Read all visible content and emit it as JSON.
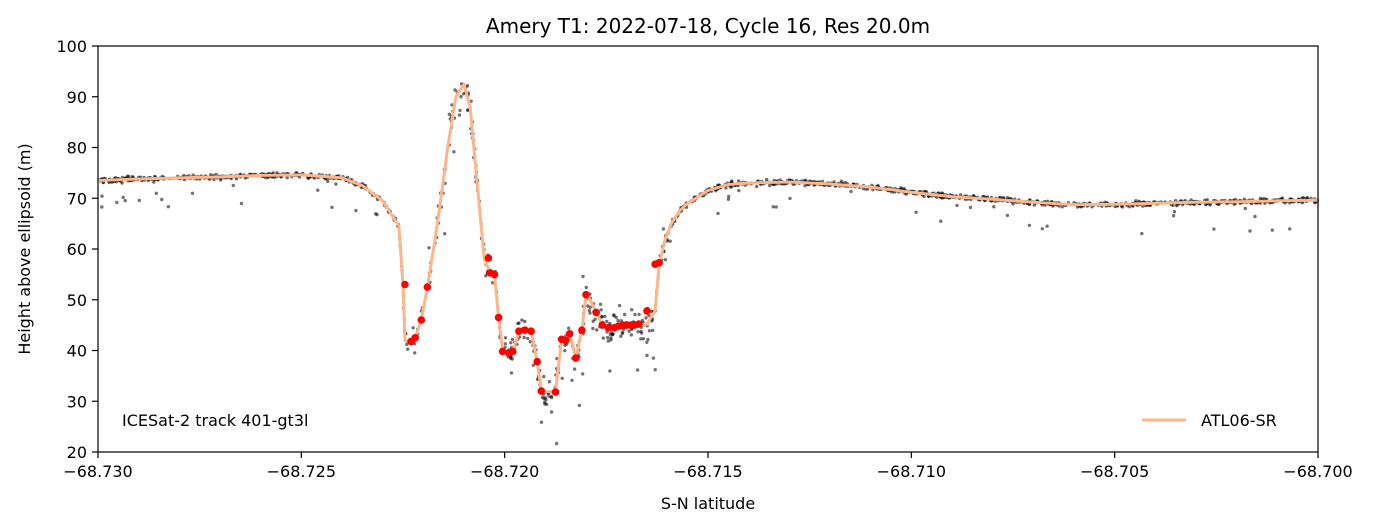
{
  "chart_data": {
    "type": "scatter",
    "title": "Amery T1: 2022-07-18, Cycle 16, Res 20.0m",
    "xlabel": "S-N latitude",
    "ylabel": "Height above ellipsoid (m)",
    "xlim": [
      -68.73,
      -68.7
    ],
    "ylim": [
      20,
      100
    ],
    "xticks": [
      -68.73,
      -68.725,
      -68.72,
      -68.715,
      -68.71,
      -68.705,
      -68.7
    ],
    "xtick_labels": [
      "−68.730",
      "−68.725",
      "−68.720",
      "−68.715",
      "−68.710",
      "−68.705",
      "−68.700"
    ],
    "yticks": [
      20,
      30,
      40,
      50,
      60,
      70,
      80,
      90,
      100
    ],
    "ytick_labels": [
      "20",
      "30",
      "40",
      "50",
      "60",
      "70",
      "80",
      "90",
      "100"
    ],
    "grid": false,
    "legend": {
      "position": "lower right",
      "entries": [
        "ATL06-SR"
      ]
    },
    "annotation": "ICESat-2 track 401-gt3l",
    "colors": {
      "photons": "#000000",
      "atl06_line": "#ffb58a",
      "highlight_points": "#ff0000"
    },
    "series": [
      {
        "name": "ATL06-SR",
        "style": "line",
        "x": [
          -68.73,
          -68.729,
          -68.728,
          -68.727,
          -68.726,
          -68.725,
          -68.724,
          -68.7235,
          -68.723,
          -68.7228,
          -68.7226,
          -68.7225,
          -68.72245,
          -68.7223,
          -68.7222,
          -68.72205,
          -68.7219,
          -68.72175,
          -68.7216,
          -68.7214,
          -68.7212,
          -68.721,
          -68.72085,
          -68.7207,
          -68.7205,
          -68.72035,
          -68.72025,
          -68.72015,
          -68.72005,
          -68.7199,
          -68.7198,
          -68.71965,
          -68.7195,
          -68.71935,
          -68.7192,
          -68.7191,
          -68.71875,
          -68.7186,
          -68.7185,
          -68.7184,
          -68.71825,
          -68.7181,
          -68.718,
          -68.7179,
          -68.71775,
          -68.7176,
          -68.71745,
          -68.7173,
          -68.7171,
          -68.7169,
          -68.7167,
          -68.7165,
          -68.7163,
          -68.7162,
          -68.71605,
          -68.7159,
          -68.7157,
          -68.7155,
          -68.715,
          -68.7145,
          -68.714,
          -68.713,
          -68.712,
          -68.711,
          -68.71,
          -68.709,
          -68.708,
          -68.707,
          -68.706,
          -68.705,
          -68.704,
          -68.703,
          -68.702,
          -68.701,
          -68.7
        ],
        "y": [
          73.5,
          73.8,
          74.0,
          74.2,
          74.5,
          74.6,
          74.0,
          72.5,
          69.5,
          67.0,
          64.5,
          53.0,
          42.0,
          41.5,
          42.5,
          46.0,
          52.5,
          60.0,
          68.0,
          80.0,
          90.0,
          92.5,
          88.0,
          75.0,
          58.0,
          55.3,
          55.0,
          46.5,
          40.0,
          39.5,
          39.8,
          43.8,
          44.0,
          43.8,
          37.8,
          32.0,
          31.8,
          42.2,
          42.0,
          43.3,
          38.5,
          44.0,
          51.0,
          50.0,
          47.5,
          45.0,
          44.5,
          44.8,
          45.0,
          45.0,
          45.0,
          45.2,
          47.8,
          57.0,
          62.0,
          65.0,
          67.5,
          69.0,
          71.5,
          72.7,
          73.0,
          73.2,
          72.8,
          72.2,
          71.2,
          70.3,
          69.8,
          69.2,
          68.7,
          68.8,
          69.0,
          69.2,
          69.3,
          69.5,
          69.6
        ]
      },
      {
        "name": "",
        "style": "points",
        "x": [
          -68.72245,
          -68.7223,
          -68.7222,
          -68.72205,
          -68.7219,
          -68.7204,
          -68.72035,
          -68.72025,
          -68.72015,
          -68.72005,
          -68.7199,
          -68.7198,
          -68.71965,
          -68.7195,
          -68.71935,
          -68.7192,
          -68.7191,
          -68.71875,
          -68.7186,
          -68.7185,
          -68.7184,
          -68.71825,
          -68.7181,
          -68.718,
          -68.71775,
          -68.7176,
          -68.71745,
          -68.7173,
          -68.7172,
          -68.7171,
          -68.717,
          -68.7169,
          -68.7168,
          -68.7167,
          -68.7165,
          -68.7163,
          -68.7162
        ],
        "y": [
          53.0,
          41.8,
          42.5,
          46.0,
          52.5,
          58.2,
          55.3,
          55.0,
          46.5,
          39.8,
          39.5,
          39.8,
          43.8,
          44.0,
          43.8,
          37.8,
          32.0,
          31.8,
          42.2,
          42.0,
          43.3,
          38.5,
          44.0,
          51.0,
          47.5,
          45.0,
          44.5,
          44.5,
          44.8,
          45.0,
          45.0,
          45.0,
          45.0,
          45.2,
          47.8,
          57.0,
          57.3
        ]
      }
    ]
  }
}
